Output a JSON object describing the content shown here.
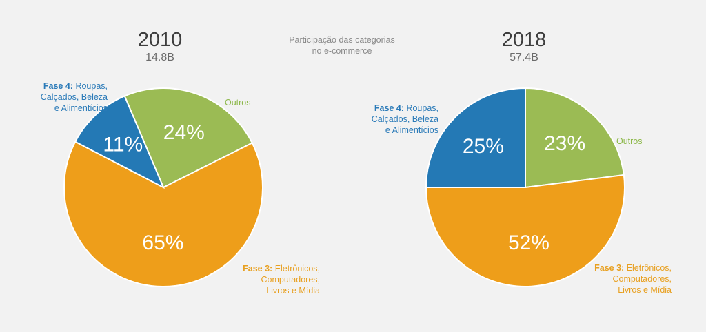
{
  "caption": [
    "Participação das categorias",
    "no e-commerce"
  ],
  "colors": {
    "fase4": "#2479b5",
    "outros": "#9bbb54",
    "fase3": "#ee9e1a"
  },
  "chart_data": [
    {
      "type": "pie",
      "title": "2010",
      "subtitle": "14.8B",
      "slices": [
        {
          "key": "outros",
          "value": 24,
          "text": "24%"
        },
        {
          "key": "fase3",
          "value": 65,
          "text": "65%"
        },
        {
          "key": "fase4",
          "value": 11,
          "text": "11%"
        }
      ]
    },
    {
      "type": "pie",
      "title": "2018",
      "subtitle": "57.4B",
      "slices": [
        {
          "key": "outros",
          "value": 23,
          "text": "23%"
        },
        {
          "key": "fase3",
          "value": 52,
          "text": "52%"
        },
        {
          "key": "fase4",
          "value": 25,
          "text": "25%"
        }
      ]
    }
  ],
  "legend": {
    "fase4": {
      "bold": "Fase 4:",
      "lines": [
        " Roupas,",
        "Calçados, Beleza",
        "e Alimentícios"
      ]
    },
    "outros": {
      "text": "Outros"
    },
    "fase3": {
      "bold": "Fase 3:",
      "lines": [
        " Eletrônicos,",
        "Computadores,",
        "Livros e Mídia"
      ]
    }
  }
}
